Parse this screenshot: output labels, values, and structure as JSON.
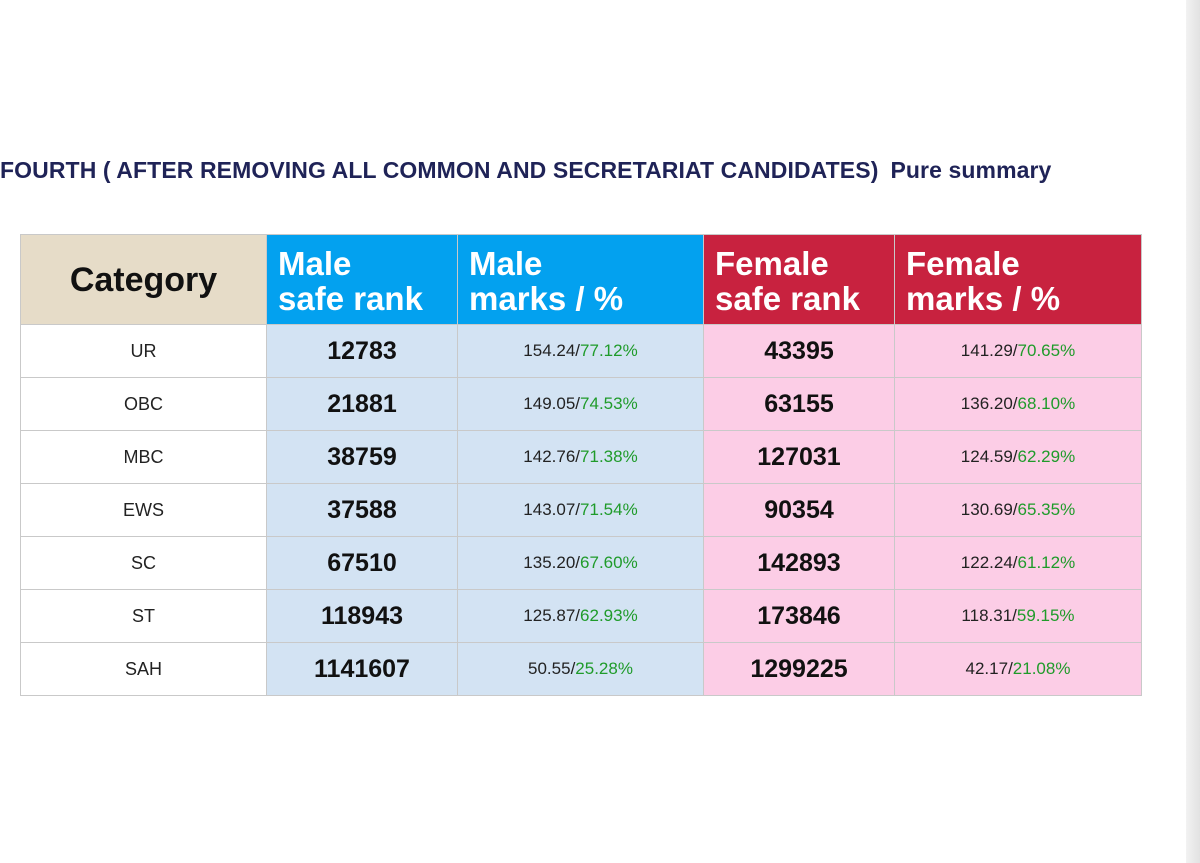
{
  "heading": {
    "text": "FOURTH ( AFTER REMOVING ALL COMMON AND SECRETARIAT CANDIDATES)",
    "suffix": "Pure summary"
  },
  "colors": {
    "male_header": "#03a1ef",
    "female_header": "#c8223f",
    "category_header": "#e6dcc8",
    "male_cells": "#d3e3f3",
    "female_cells": "#fccde6",
    "percent_text": "#1f9b2a",
    "heading_text": "#1f2357"
  },
  "chart_data": {
    "type": "table",
    "columns": [
      {
        "key": "category",
        "lines": [
          "Category"
        ]
      },
      {
        "key": "male_rank",
        "lines": [
          "Male",
          "safe rank"
        ]
      },
      {
        "key": "male_marks",
        "lines": [
          "Male",
          "marks / %"
        ]
      },
      {
        "key": "female_rank",
        "lines": [
          "Female",
          "safe rank"
        ]
      },
      {
        "key": "female_marks",
        "lines": [
          "Female",
          "marks / %"
        ]
      }
    ],
    "rows": [
      {
        "category": "UR",
        "male_rank": "12783",
        "male_marks": "154.24",
        "male_pct": "77.12%",
        "female_rank": "43395",
        "female_marks": "141.29",
        "female_pct": "70.65%"
      },
      {
        "category": "OBC",
        "male_rank": "21881",
        "male_marks": "149.05",
        "male_pct": "74.53%",
        "female_rank": "63155",
        "female_marks": "136.20",
        "female_pct": "68.10%"
      },
      {
        "category": "MBC",
        "male_rank": "38759",
        "male_marks": "142.76",
        "male_pct": "71.38%",
        "female_rank": "127031",
        "female_marks": "124.59",
        "female_pct": "62.29%"
      },
      {
        "category": "EWS",
        "male_rank": "37588",
        "male_marks": "143.07",
        "male_pct": "71.54%",
        "female_rank": "90354",
        "female_marks": "130.69",
        "female_pct": "65.35%"
      },
      {
        "category": "SC",
        "male_rank": "67510",
        "male_marks": "135.20",
        "male_pct": "67.60%",
        "female_rank": "142893",
        "female_marks": "122.24",
        "female_pct": "61.12%"
      },
      {
        "category": "ST",
        "male_rank": "118943",
        "male_marks": "125.87",
        "male_pct": "62.93%",
        "female_rank": "173846",
        "female_marks": "118.31",
        "female_pct": "59.15%"
      },
      {
        "category": "SAH",
        "male_rank": "1141607",
        "male_marks": "50.55",
        "male_pct": "25.28%",
        "female_rank": "1299225",
        "female_marks": "42.17",
        "female_pct": "21.08%"
      }
    ]
  }
}
